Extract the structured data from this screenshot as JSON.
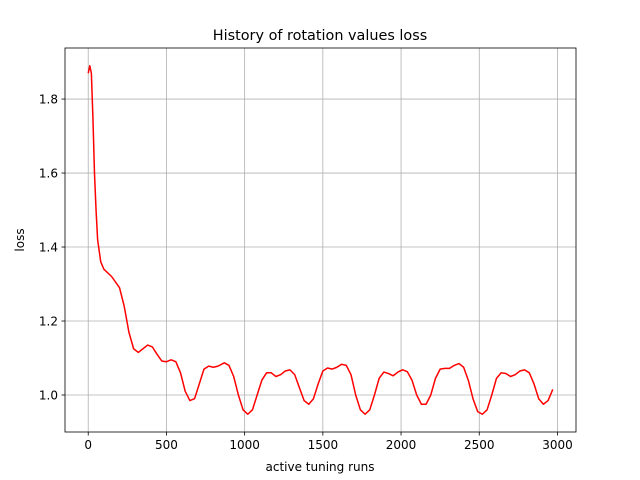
{
  "chart_data": {
    "type": "line",
    "title": "History of rotation values loss",
    "xlabel": "active tuning runs",
    "ylabel": "loss",
    "x": [
      0,
      10,
      20,
      30,
      40,
      50,
      60,
      80,
      100,
      150,
      200,
      230,
      260,
      290,
      320,
      350,
      380,
      410,
      440,
      470,
      500,
      530,
      560,
      590,
      620,
      650,
      680,
      710,
      740,
      770,
      800,
      830,
      870,
      900,
      930,
      960,
      990,
      1020,
      1050,
      1080,
      1110,
      1140,
      1170,
      1200,
      1230,
      1260,
      1290,
      1320,
      1350,
      1380,
      1410,
      1440,
      1470,
      1500,
      1530,
      1560,
      1590,
      1620,
      1650,
      1680,
      1710,
      1740,
      1770,
      1800,
      1830,
      1860,
      1890,
      1920,
      1950,
      1980,
      2010,
      2040,
      2070,
      2100,
      2130,
      2160,
      2190,
      2220,
      2250,
      2280,
      2310,
      2340,
      2370,
      2400,
      2430,
      2460,
      2490,
      2520,
      2550,
      2580,
      2610,
      2640,
      2670,
      2700,
      2730,
      2760,
      2790,
      2820,
      2850,
      2880,
      2910,
      2940,
      2970
    ],
    "series": [
      {
        "name": "loss",
        "color": "#ff0000",
        "values": [
          1.87,
          1.89,
          1.87,
          1.75,
          1.6,
          1.5,
          1.42,
          1.36,
          1.34,
          1.32,
          1.29,
          1.24,
          1.17,
          1.125,
          1.115,
          1.125,
          1.135,
          1.13,
          1.11,
          1.092,
          1.09,
          1.095,
          1.09,
          1.06,
          1.01,
          0.985,
          0.99,
          1.03,
          1.07,
          1.078,
          1.075,
          1.078,
          1.087,
          1.08,
          1.05,
          1.0,
          0.96,
          0.948,
          0.96,
          1.0,
          1.04,
          1.06,
          1.06,
          1.05,
          1.055,
          1.065,
          1.068,
          1.055,
          1.02,
          0.985,
          0.975,
          0.99,
          1.03,
          1.065,
          1.073,
          1.07,
          1.075,
          1.083,
          1.08,
          1.055,
          1.0,
          0.96,
          0.948,
          0.96,
          1.0,
          1.045,
          1.062,
          1.058,
          1.052,
          1.062,
          1.068,
          1.063,
          1.04,
          1.0,
          0.975,
          0.975,
          1.0,
          1.045,
          1.07,
          1.072,
          1.072,
          1.08,
          1.085,
          1.075,
          1.04,
          0.99,
          0.955,
          0.948,
          0.96,
          1.0,
          1.045,
          1.06,
          1.058,
          1.05,
          1.055,
          1.065,
          1.068,
          1.06,
          1.03,
          0.99,
          0.975,
          0.985,
          1.015
        ]
      }
    ],
    "xlim": [
      -148.5,
      3118.5
    ],
    "ylim": [
      0.9,
      1.938
    ],
    "xticks": [
      0,
      500,
      1000,
      1500,
      2000,
      2500,
      3000
    ],
    "yticks": [
      {
        "value": 1.0,
        "label": "1.0"
      },
      {
        "value": 1.2,
        "label": "1.2"
      },
      {
        "value": 1.4,
        "label": "1.4"
      },
      {
        "value": 1.6,
        "label": "1.6"
      },
      {
        "value": 1.8,
        "label": "1.8"
      }
    ],
    "grid": true
  }
}
